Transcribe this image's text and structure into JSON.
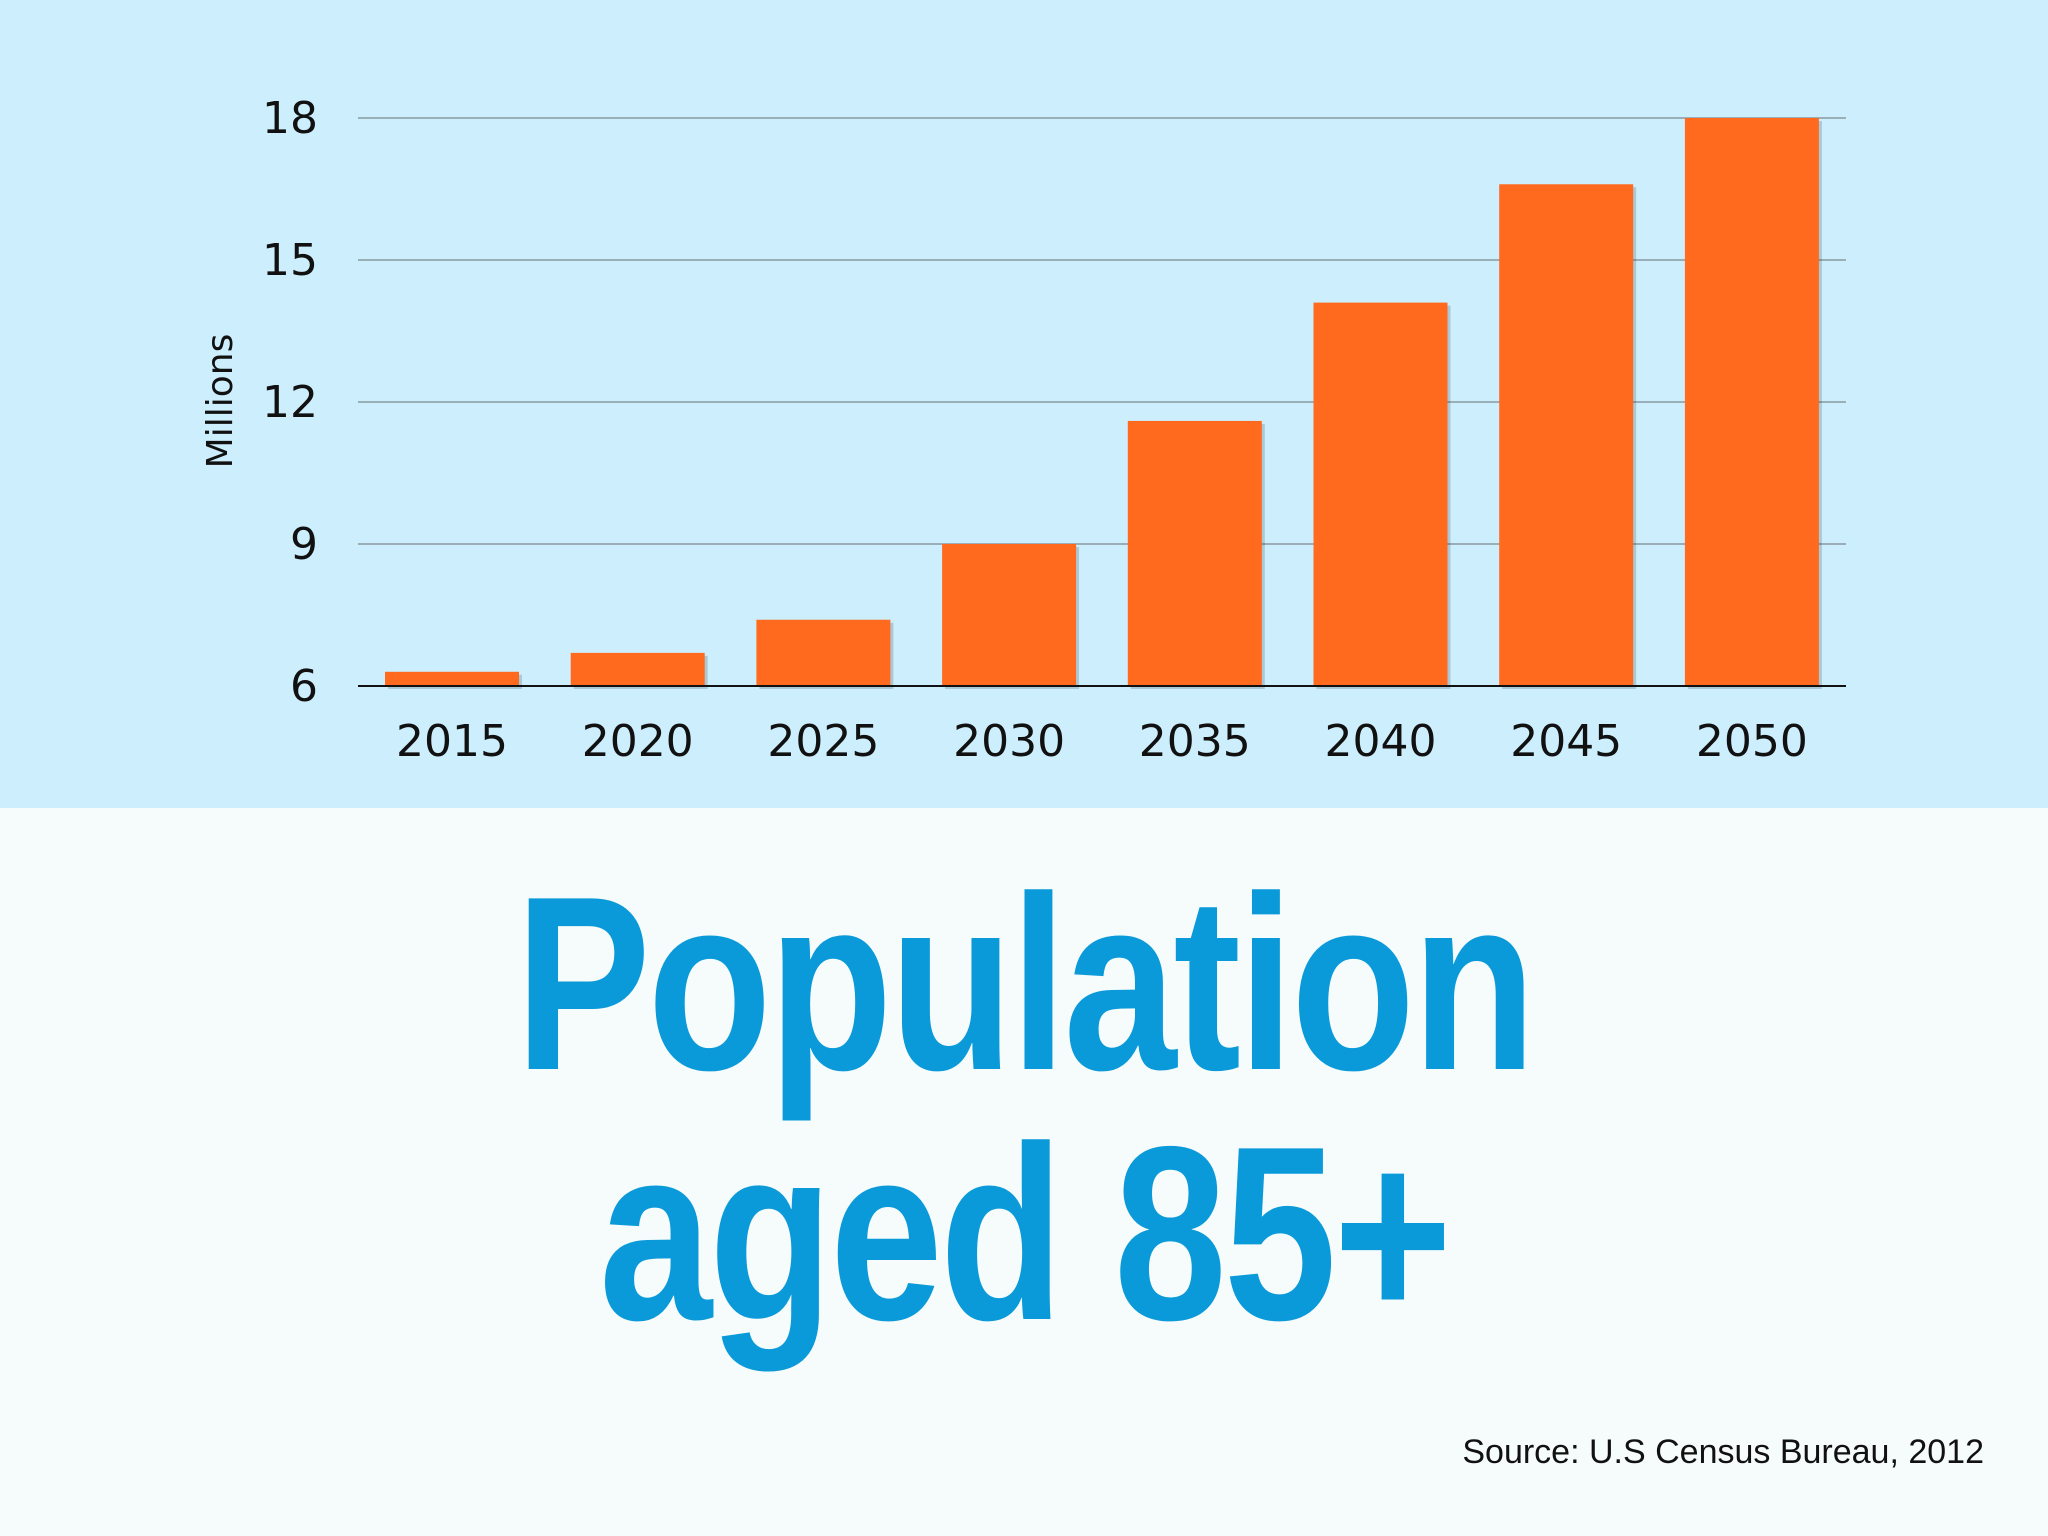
{
  "chart_data": {
    "type": "bar",
    "title": "",
    "categories": [
      "2015",
      "2020",
      "2025",
      "2030",
      "2035",
      "2040",
      "2045",
      "2050"
    ],
    "values": [
      6.3,
      6.7,
      7.4,
      9.0,
      11.6,
      14.1,
      16.6,
      18.0
    ],
    "ylabel": "Millions",
    "xlabel": "",
    "ylim": [
      6,
      18
    ],
    "yticks": [
      "6",
      "9",
      "12",
      "15",
      "18"
    ],
    "grid": true,
    "bar_color": "#ff6a1f",
    "background_color": "#cdeffd"
  },
  "headline": {
    "line1": "Population",
    "line2": "aged 85+"
  },
  "source": "Source: U.S Census Bureau, 2012",
  "colors": {
    "headline": "#0a9ad9",
    "bottom_background": "#f6fbfb",
    "chart_background": "#cdeffd"
  }
}
